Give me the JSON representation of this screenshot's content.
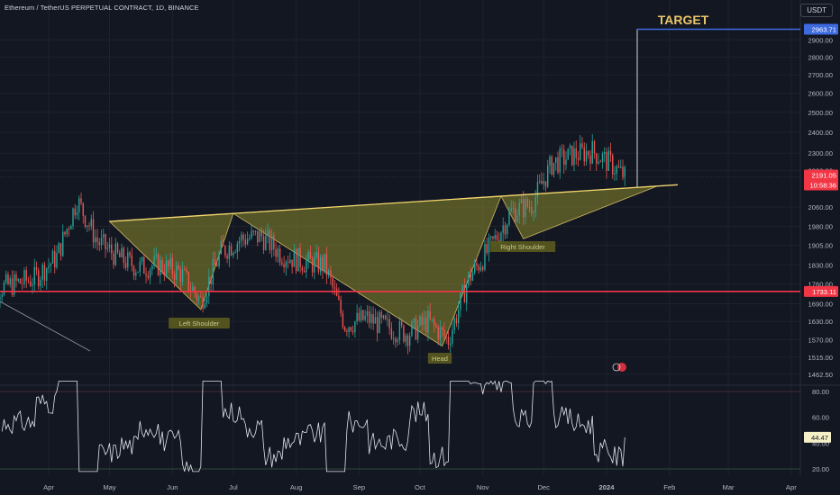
{
  "header": {
    "title": "Ethereum / TetherUS PERPETUAL CONTRACT, 1D, BINANCE",
    "currency": "USDT"
  },
  "price_axis": {
    "ticks": [
      "2900.00",
      "2800.00",
      "2700.00",
      "2600.00",
      "2500.00",
      "2400.00",
      "2300.00",
      "2220.00",
      "2060.00",
      "1980.00",
      "1905.00",
      "1830.00",
      "1760.00",
      "1690.00",
      "1630.00",
      "1570.00",
      "1515.00",
      "1462.50"
    ],
    "target_label": "2963.71",
    "current_price": "2191.05",
    "countdown": "10:58:36",
    "support_label": "1733.11"
  },
  "time_axis": {
    "labels": [
      "Apr",
      "May",
      "Jun",
      "Jul",
      "Aug",
      "Sep",
      "Oct",
      "Nov",
      "Dec",
      "2024",
      "Feb",
      "Mar",
      "Apr"
    ]
  },
  "rsi": {
    "ticks": [
      "80.00",
      "60.00",
      "40.00",
      "20.00"
    ],
    "current": "44.47"
  },
  "annotations": {
    "target": "TARGET",
    "left_shoulder": "Left Shoulder",
    "head": "Head",
    "right_shoulder": "Right Shoulder"
  },
  "colors": {
    "background": "#131722",
    "up": "#26a69a",
    "down": "#ef5350",
    "neckline": "#f5d76e",
    "pattern_fill": "#8a8a2e",
    "support": "#f23645",
    "target_line": "#3d6adf",
    "target_text": "#e9c46a",
    "rsi_line": "#e0e3eb"
  },
  "chart_data": [
    {
      "type": "candlestick",
      "title": "Ethereum / TetherUS PERPETUAL CONTRACT, 1D, BINANCE",
      "x": [
        "2023-03-15",
        "2023-03-25",
        "2023-04-05",
        "2023-04-15",
        "2023-04-25",
        "2023-05-05",
        "2023-05-15",
        "2023-05-25",
        "2023-06-05",
        "2023-06-15",
        "2023-06-25",
        "2023-07-05",
        "2023-07-15",
        "2023-07-25",
        "2023-08-05",
        "2023-08-15",
        "2023-08-25",
        "2023-09-05",
        "2023-09-15",
        "2023-09-25",
        "2023-10-05",
        "2023-10-15",
        "2023-10-25",
        "2023-11-05",
        "2023-11-15",
        "2023-11-25",
        "2023-12-05",
        "2023-12-15",
        "2023-12-25",
        "2024-01-03",
        "2024-01-10"
      ],
      "close": [
        1760,
        1780,
        1860,
        2090,
        1920,
        1860,
        1820,
        1830,
        1800,
        1700,
        1880,
        1930,
        1940,
        1870,
        1840,
        1830,
        1620,
        1640,
        1610,
        1590,
        1630,
        1570,
        1780,
        1900,
        2040,
        2070,
        2250,
        2290,
        2310,
        2250,
        2191.05
      ],
      "ylim": [
        1440,
        3000
      ],
      "y_scale": "log",
      "annotations": {
        "neckline": [
          [
            "2023-05-01",
            2000
          ],
          [
            "2024-01-26",
            2150
          ]
        ],
        "left_shoulder_low": [
          "2023-06-15",
          1670
        ],
        "head_low": [
          "2023-10-12",
          1550
        ],
        "right_shoulder_low": [
          "2023-11-21",
          1930
        ],
        "support": 1733.11,
        "target": 2963.71
      }
    },
    {
      "type": "line",
      "title": "RSI",
      "ylim": [
        15,
        90
      ],
      "current": 44.47,
      "levels": [
        80,
        20
      ]
    }
  ]
}
